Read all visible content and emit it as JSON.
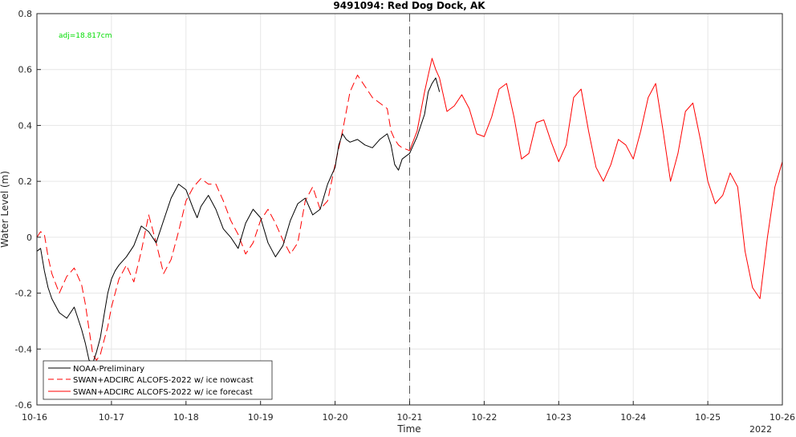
{
  "chart_data": {
    "type": "line",
    "title": "9491094: Red Dog Dock, AK",
    "xlabel": "Time",
    "ylabel": "Water Level (m)",
    "xlim": [
      0,
      10
    ],
    "ylim": [
      -0.6,
      0.8
    ],
    "x_ticks": [
      0,
      1,
      2,
      3,
      4,
      5,
      6,
      7,
      8,
      9,
      10
    ],
    "x_tick_labels": [
      "10-16",
      "10-17",
      "10-18",
      "10-19",
      "10-20",
      "10-21",
      "10-22",
      "10-23",
      "10-24",
      "10-25",
      "10-26"
    ],
    "y_ticks": [
      -0.6,
      -0.4,
      -0.2,
      0,
      0.2,
      0.4,
      0.6,
      0.8
    ],
    "y_tick_labels": [
      "-0.6",
      "-0.4",
      "-0.2",
      "0",
      "0.2",
      "0.4",
      "0.6",
      "0.8"
    ],
    "year_label": "2022",
    "annotation": "adj=18.817cm",
    "annotation_color": "#00dd00",
    "vline_x": 5.0,
    "grid": true,
    "legend_position": "bottom-left",
    "series": [
      {
        "name": "NOAA-Preliminary",
        "color": "#000000",
        "dash": "solid",
        "x": [
          0,
          0.05,
          0.1,
          0.15,
          0.2,
          0.3,
          0.4,
          0.5,
          0.6,
          0.65,
          0.7,
          0.75,
          0.8,
          0.85,
          0.9,
          0.95,
          1.0,
          1.05,
          1.1,
          1.2,
          1.3,
          1.4,
          1.5,
          1.6,
          1.7,
          1.8,
          1.9,
          2.0,
          2.1,
          2.15,
          2.2,
          2.3,
          2.4,
          2.5,
          2.6,
          2.7,
          2.8,
          2.9,
          3.0,
          3.1,
          3.2,
          3.3,
          3.4,
          3.5,
          3.6,
          3.7,
          3.8,
          3.9,
          4.0,
          4.05,
          4.1,
          4.15,
          4.2,
          4.3,
          4.4,
          4.5,
          4.6,
          4.7,
          4.75,
          4.8,
          4.85,
          4.9,
          5.0,
          5.1,
          5.2,
          5.25,
          5.3,
          5.35,
          5.4
        ],
        "y": [
          -0.05,
          -0.04,
          -0.12,
          -0.18,
          -0.22,
          -0.27,
          -0.29,
          -0.25,
          -0.33,
          -0.38,
          -0.44,
          -0.45,
          -0.41,
          -0.36,
          -0.28,
          -0.2,
          -0.15,
          -0.12,
          -0.1,
          -0.07,
          -0.03,
          0.04,
          0.02,
          -0.02,
          0.06,
          0.14,
          0.19,
          0.17,
          0.1,
          0.07,
          0.11,
          0.15,
          0.1,
          0.03,
          0.0,
          -0.04,
          0.05,
          0.1,
          0.07,
          -0.02,
          -0.07,
          -0.03,
          0.06,
          0.12,
          0.14,
          0.08,
          0.1,
          0.19,
          0.25,
          0.33,
          0.37,
          0.35,
          0.34,
          0.35,
          0.33,
          0.32,
          0.35,
          0.37,
          0.33,
          0.26,
          0.24,
          0.28,
          0.3,
          0.36,
          0.44,
          0.52,
          0.55,
          0.57,
          0.52
        ]
      },
      {
        "name": "SWAN+ADCIRC ALCOFS-2022 w/ ice nowcast",
        "color": "#ff0000",
        "dash": "dashed",
        "x": [
          0,
          0.05,
          0.1,
          0.15,
          0.2,
          0.3,
          0.4,
          0.5,
          0.6,
          0.65,
          0.7,
          0.75,
          0.8,
          0.85,
          0.9,
          0.95,
          1.0,
          1.05,
          1.1,
          1.2,
          1.3,
          1.4,
          1.5,
          1.6,
          1.7,
          1.8,
          1.9,
          2.0,
          2.1,
          2.2,
          2.3,
          2.4,
          2.5,
          2.6,
          2.7,
          2.8,
          2.9,
          3.0,
          3.1,
          3.2,
          3.3,
          3.4,
          3.5,
          3.6,
          3.7,
          3.8,
          3.9,
          4.0,
          4.1,
          4.2,
          4.3,
          4.4,
          4.5,
          4.6,
          4.7,
          4.75,
          4.8,
          4.85,
          4.9,
          5.0
        ],
        "y": [
          0.0,
          0.02,
          0.01,
          -0.07,
          -0.13,
          -0.2,
          -0.14,
          -0.11,
          -0.17,
          -0.24,
          -0.33,
          -0.42,
          -0.44,
          -0.42,
          -0.37,
          -0.32,
          -0.25,
          -0.2,
          -0.15,
          -0.1,
          -0.16,
          -0.05,
          0.08,
          -0.02,
          -0.13,
          -0.08,
          0.02,
          0.13,
          0.18,
          0.21,
          0.19,
          0.19,
          0.13,
          0.06,
          0.01,
          -0.06,
          -0.02,
          0.06,
          0.1,
          0.05,
          -0.01,
          -0.06,
          -0.02,
          0.13,
          0.18,
          0.1,
          0.13,
          0.26,
          0.38,
          0.52,
          0.58,
          0.54,
          0.5,
          0.48,
          0.46,
          0.38,
          0.35,
          0.33,
          0.32,
          0.31
        ]
      },
      {
        "name": "SWAN+ADCIRC ALCOFS-2022 w/ ice forecast",
        "color": "#ff0000",
        "dash": "solid",
        "x": [
          5.0,
          5.1,
          5.2,
          5.25,
          5.3,
          5.35,
          5.4,
          5.5,
          5.6,
          5.7,
          5.8,
          5.9,
          6.0,
          6.1,
          6.2,
          6.3,
          6.4,
          6.5,
          6.6,
          6.7,
          6.8,
          6.9,
          7.0,
          7.1,
          7.2,
          7.3,
          7.4,
          7.5,
          7.6,
          7.7,
          7.8,
          7.9,
          8.0,
          8.1,
          8.2,
          8.3,
          8.4,
          8.5,
          8.6,
          8.7,
          8.8,
          8.9,
          9.0,
          9.1,
          9.2,
          9.3,
          9.4,
          9.5,
          9.6,
          9.7,
          9.8,
          9.9,
          10.0
        ],
        "y": [
          0.31,
          0.38,
          0.52,
          0.58,
          0.64,
          0.6,
          0.57,
          0.45,
          0.47,
          0.51,
          0.46,
          0.37,
          0.36,
          0.43,
          0.53,
          0.55,
          0.43,
          0.28,
          0.3,
          0.41,
          0.42,
          0.34,
          0.27,
          0.33,
          0.5,
          0.53,
          0.38,
          0.25,
          0.2,
          0.26,
          0.35,
          0.33,
          0.28,
          0.38,
          0.5,
          0.55,
          0.38,
          0.2,
          0.3,
          0.45,
          0.48,
          0.35,
          0.2,
          0.12,
          0.15,
          0.23,
          0.18,
          -0.05,
          -0.18,
          -0.22,
          0.0,
          0.18,
          0.27
        ]
      }
    ]
  }
}
